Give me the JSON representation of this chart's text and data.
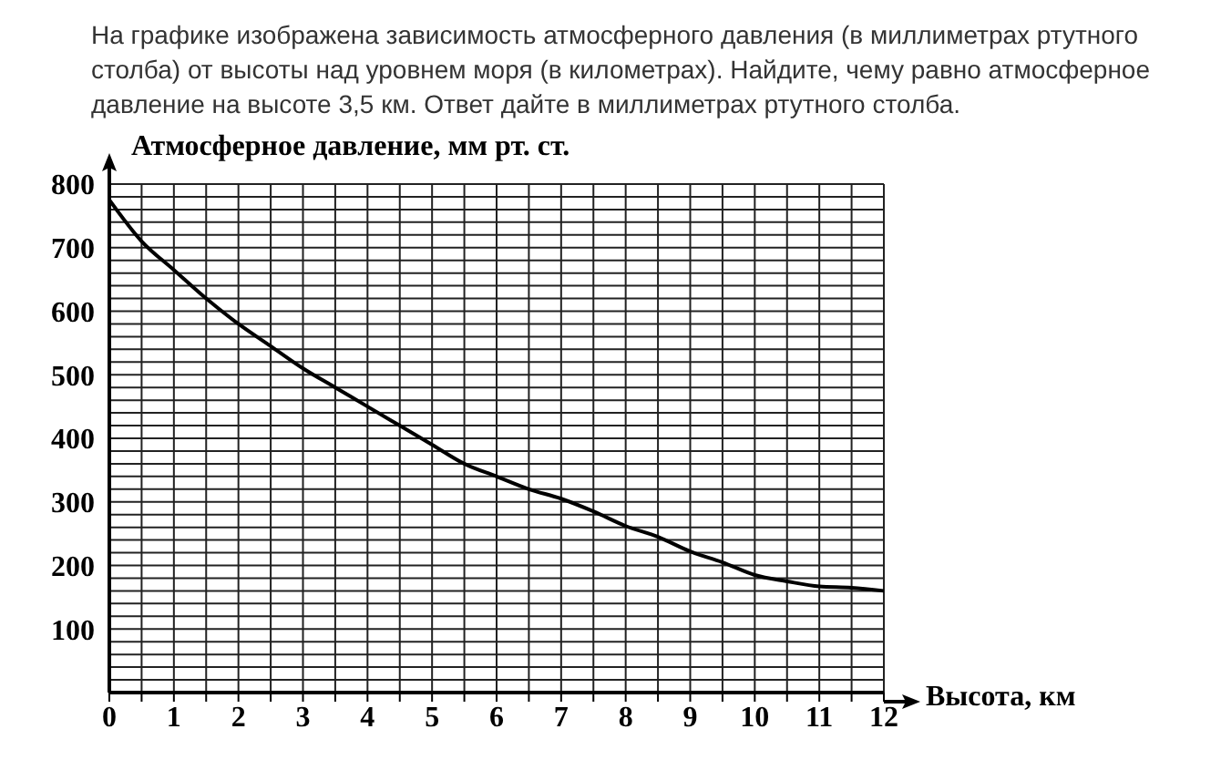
{
  "chart_data": {
    "type": "line",
    "title": "На графике изображена зависимость атмосферного давления (в миллиметрах ртутного столба) от высоты над уровнем моря (в километрах). Найдите, чему равно атмосферное давление на высоте 3,5 км. Ответ дайте в миллиметрах ртутного столба.",
    "xlabel": "Высота, км",
    "ylabel": "Атмосферное давление, мм рт. ст.",
    "x": [
      0,
      0.5,
      1,
      1.5,
      2,
      2.5,
      3,
      3.5,
      4,
      4.5,
      5,
      5.5,
      6,
      6.5,
      7,
      7.5,
      8,
      8.5,
      9,
      9.5,
      10,
      10.5,
      11,
      11.5,
      12
    ],
    "series": [
      {
        "color": "#000000",
        "values": [
          775,
          710,
          665,
          620,
          580,
          545,
          510,
          480,
          450,
          420,
          390,
          360,
          340,
          320,
          305,
          285,
          262,
          245,
          222,
          205,
          185,
          175,
          167,
          165,
          160
        ]
      }
    ],
    "xlim": [
      0,
      12
    ],
    "xticks": [
      0,
      {
        "value": 0.5,
        "label": null
      },
      1,
      {
        "value": 1.5,
        "label": null
      },
      2,
      {
        "value": 2.5,
        "label": null
      },
      3,
      {
        "value": 3.5,
        "label": null
      },
      4,
      {
        "value": 4.5,
        "label": null
      },
      5,
      {
        "value": 5.5,
        "label": null
      },
      6,
      {
        "value": 6.5,
        "label": null
      },
      7,
      {
        "value": 7.5,
        "label": null
      },
      8,
      {
        "value": 8.5,
        "label": null
      },
      9,
      {
        "value": 9.5,
        "label": null
      },
      10,
      {
        "value": 10.5,
        "label": null
      },
      11,
      {
        "value": 11.5,
        "label": null
      },
      12
    ],
    "ylim": [
      0,
      800
    ],
    "yticks": [
      {
        "value": 0,
        "label": null
      },
      {
        "value": 20,
        "label": null
      },
      {
        "value": 40,
        "label": null
      },
      {
        "value": 60,
        "label": null
      },
      {
        "value": 80,
        "label": null
      },
      100,
      {
        "value": 120,
        "label": null
      },
      {
        "value": 140,
        "label": null
      },
      {
        "value": 160,
        "label": null
      },
      {
        "value": 180,
        "label": null
      },
      200,
      {
        "value": 220,
        "label": null
      },
      {
        "value": 240,
        "label": null
      },
      {
        "value": 260,
        "label": null
      },
      {
        "value": 280,
        "label": null
      },
      300,
      {
        "value": 320,
        "label": null
      },
      {
        "value": 340,
        "label": null
      },
      {
        "value": 360,
        "label": null
      },
      {
        "value": 380,
        "label": null
      },
      400,
      {
        "value": 420,
        "label": null
      },
      {
        "value": 440,
        "label": null
      },
      {
        "value": 460,
        "label": null
      },
      {
        "value": 480,
        "label": null
      },
      500,
      {
        "value": 520,
        "label": null
      },
      {
        "value": 540,
        "label": null
      },
      {
        "value": 560,
        "label": null
      },
      {
        "value": 580,
        "label": null
      },
      600,
      {
        "value": 620,
        "label": null
      },
      {
        "value": 640,
        "label": null
      },
      {
        "value": 660,
        "label": null
      },
      {
        "value": 680,
        "label": null
      },
      700,
      {
        "value": 720,
        "label": null
      },
      {
        "value": 740,
        "label": null
      },
      {
        "value": 760,
        "label": null
      },
      {
        "value": 780,
        "label": null
      },
      800
    ],
    "grid": true,
    "legend": false,
    "marker": "none",
    "line_style": "solid"
  }
}
